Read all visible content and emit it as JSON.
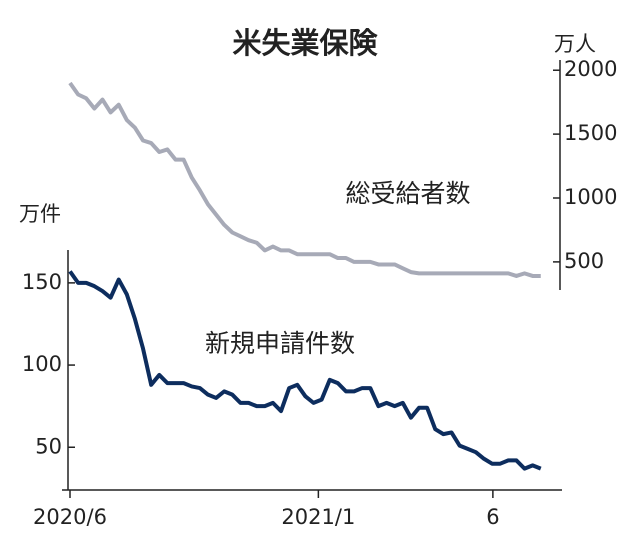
{
  "title": "米失業保険",
  "chart_data": [
    {
      "type": "line",
      "y_axis_label": "万人",
      "annotation": "総受給者数",
      "y_axis_side": "right",
      "x": [
        0,
        1,
        2,
        3,
        4,
        5,
        6,
        7,
        8,
        9,
        10,
        11,
        12,
        13,
        14,
        15,
        16,
        17,
        18,
        19,
        20,
        21,
        22,
        23,
        24,
        25,
        26,
        27,
        28,
        29,
        30,
        31,
        32,
        33,
        34,
        35,
        36,
        37,
        38,
        39,
        40,
        41,
        42,
        43,
        44,
        45,
        46,
        47,
        48,
        49,
        50,
        51,
        52,
        53,
        54,
        55,
        56,
        57,
        58
      ],
      "series": [
        {
          "name": "総受給者数",
          "color": "#a7aab7",
          "values": [
            1900,
            1810,
            1780,
            1700,
            1770,
            1670,
            1730,
            1610,
            1550,
            1450,
            1430,
            1360,
            1380,
            1300,
            1300,
            1160,
            1060,
            950,
            870,
            790,
            730,
            700,
            670,
            650,
            590,
            620,
            590,
            590,
            560,
            560,
            560,
            560,
            560,
            530,
            530,
            500,
            500,
            500,
            480,
            480,
            480,
            450,
            420,
            410,
            410,
            410,
            410,
            410,
            410,
            410,
            410,
            410,
            410,
            410,
            410,
            390,
            410,
            390,
            390
          ]
        }
      ],
      "xlim": [
        0,
        60
      ],
      "ylim": [
        280,
        2080
      ],
      "yticks": [
        500,
        1000,
        1500,
        2000
      ]
    },
    {
      "type": "line",
      "y_axis_label": "万件",
      "annotation": "新規申請件数",
      "y_axis_side": "left",
      "x": [
        0,
        1,
        2,
        3,
        4,
        5,
        6,
        7,
        8,
        9,
        10,
        11,
        12,
        13,
        14,
        15,
        16,
        17,
        18,
        19,
        20,
        21,
        22,
        23,
        24,
        25,
        26,
        27,
        28,
        29,
        30,
        31,
        32,
        33,
        34,
        35,
        36,
        37,
        38,
        39,
        40,
        41,
        42,
        43,
        44,
        45,
        46,
        47,
        48,
        49,
        50,
        51,
        52,
        53,
        54,
        55,
        56,
        57,
        58
      ],
      "series": [
        {
          "name": "新規申請件数",
          "color": "#0d2d5e",
          "values": [
            157,
            150,
            150,
            148,
            145,
            141,
            152,
            143,
            128,
            110,
            88,
            94,
            89,
            89,
            89,
            87,
            86,
            82,
            80,
            84,
            82,
            77,
            77,
            75,
            75,
            77,
            72,
            86,
            88,
            81,
            77,
            79,
            91,
            89,
            84,
            84,
            86,
            86,
            75,
            77,
            75,
            77,
            68,
            74,
            74,
            61,
            58,
            59,
            51,
            49,
            47,
            43,
            40,
            40,
            42,
            42,
            37,
            39,
            37
          ]
        }
      ],
      "xlim": [
        0,
        60
      ],
      "ylim": [
        24,
        170
      ],
      "yticks": [
        50,
        100,
        150
      ],
      "xticks": [
        {
          "value": 0,
          "label": "2020/6"
        },
        {
          "value": 30.6,
          "label": "2021/1"
        },
        {
          "value": 52.1,
          "label": "6"
        }
      ]
    }
  ]
}
